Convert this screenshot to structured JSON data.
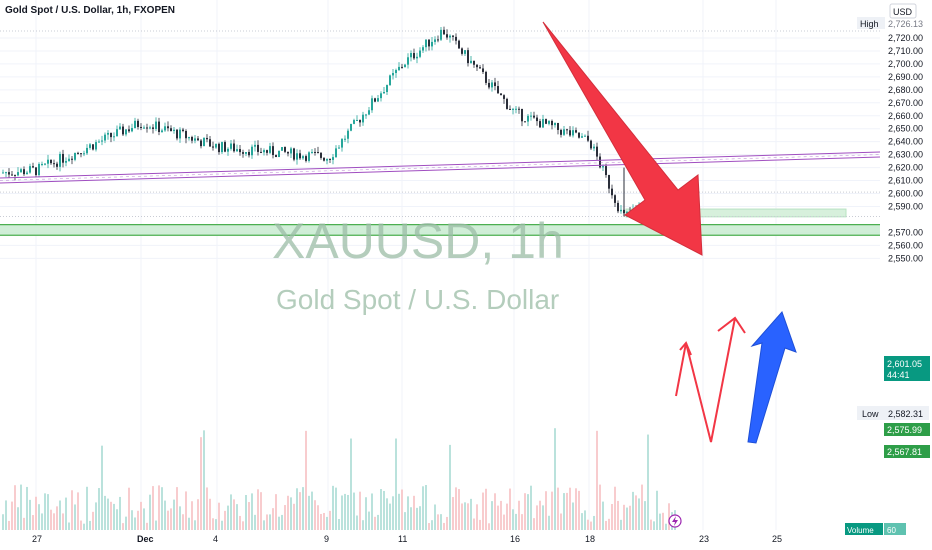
{
  "header": {
    "title": "Gold Spot / U.S. Dollar, 1h, FXOPEN",
    "currency": "USD"
  },
  "watermark": {
    "symbol": "XAUUSD, 1h",
    "name": "Gold Spot / U.S. Dollar"
  },
  "labels": {
    "high_tag": "High",
    "high_value": "2,726.13",
    "low_tag": "Low",
    "low_value": "2,582.31",
    "last_price": "2,601.05",
    "countdown": "44:41",
    "level_1": "2,575.99",
    "level_2": "2,567.81",
    "volume_tag": "Volume",
    "volume_value": "60"
  },
  "colors": {
    "up": "#26a69a",
    "down": "#2a2e39",
    "channel": "#a04ec0",
    "red_arrow": "#f23645",
    "blue_arrow": "#2962ff",
    "zone_fill": "#c8ebd0",
    "zone_line": "#4caf50",
    "price_tag": "#089981"
  },
  "icons": {
    "dividend_marker": "lightning-icon"
  },
  "chart_data": {
    "type": "candlestick",
    "symbol": "XAUUSD",
    "timeframe": "1h",
    "y_ticks": [
      2550,
      2560,
      2570,
      2590,
      2600,
      2610,
      2620,
      2630,
      2640,
      2650,
      2660,
      2670,
      2680,
      2690,
      2700,
      2710,
      2720
    ],
    "x_ticks": [
      "27",
      "Dec",
      "4",
      "9",
      "11",
      "16",
      "18",
      "23",
      "25"
    ],
    "ylim": [
      2543,
      2729
    ],
    "approx_close_path": [
      {
        "x": "27",
        "y": 2618
      },
      {
        "x": "Dec",
        "y": 2655
      },
      {
        "x": "4",
        "y": 2636
      },
      {
        "x": "9",
        "y": 2628
      },
      {
        "x": "11",
        "y": 2700
      },
      {
        "x": "12",
        "y": 2726
      },
      {
        "x": "16",
        "y": 2662
      },
      {
        "x": "18",
        "y": 2640
      },
      {
        "x": "19",
        "y": 2582
      },
      {
        "x": "20",
        "y": 2601
      }
    ],
    "high": 2726.13,
    "low": 2582.31,
    "last": 2601.05,
    "support_zone": [
      2567.81,
      2575.99
    ],
    "small_zone": [
      2582,
      2588
    ],
    "channel_line": {
      "from": {
        "x": "27",
        "y": 2612
      },
      "to": {
        "x": "25",
        "y": 2632
      }
    },
    "volume_last": 60
  }
}
